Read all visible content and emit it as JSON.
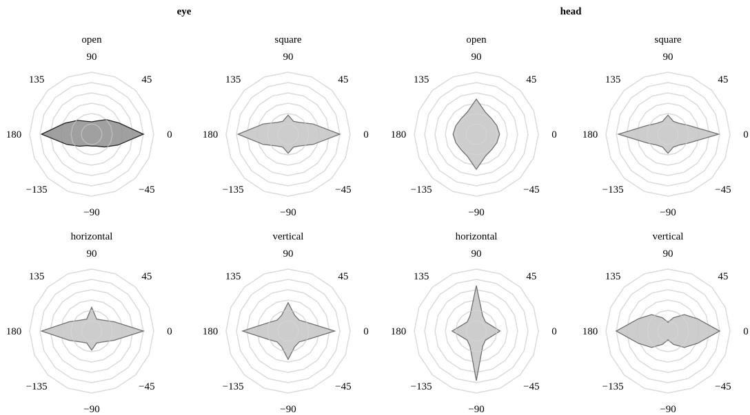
{
  "group_titles": [
    "eye",
    "head"
  ],
  "angle_labels": [
    "0",
    "45",
    "90",
    "135",
    "180",
    "−135",
    "−90",
    "−45"
  ],
  "colors": {
    "grid": "#dcdcdc",
    "fill_default": "#c8c8c8",
    "fill_dark": "#8f8f8f",
    "stroke_default": "#6f6f6f",
    "stroke_dark": "#222222"
  },
  "chart_data": [
    {
      "type": "radar",
      "group": "eye",
      "title": "open",
      "angles": [
        0,
        22.5,
        45,
        67.5,
        90,
        112.5,
        135,
        157.5,
        180,
        -157.5,
        -135,
        -112.5,
        -90,
        -67.5,
        -45,
        -22.5
      ],
      "values": [
        1.0,
        0.57,
        0.4,
        0.28,
        0.24,
        0.27,
        0.38,
        0.56,
        0.97,
        0.52,
        0.33,
        0.24,
        0.23,
        0.25,
        0.35,
        0.55
      ],
      "rmax": 1.2,
      "rings": 6,
      "dark": true
    },
    {
      "type": "radar",
      "group": "eye",
      "title": "square",
      "angles": [
        0,
        22.5,
        45,
        67.5,
        90,
        112.5,
        135,
        157.5,
        180,
        -157.5,
        -135,
        -112.5,
        -90,
        -67.5,
        -45,
        -22.5
      ],
      "values": [
        1.0,
        0.52,
        0.32,
        0.27,
        0.37,
        0.27,
        0.32,
        0.52,
        0.97,
        0.52,
        0.32,
        0.27,
        0.37,
        0.27,
        0.32,
        0.52
      ],
      "rmax": 1.2,
      "rings": 6
    },
    {
      "type": "radar",
      "group": "head",
      "title": "open",
      "angles": [
        0,
        22.5,
        45,
        67.5,
        90,
        112.5,
        135,
        157.5,
        180,
        -157.5,
        -135,
        -112.5,
        -90,
        -67.5,
        -45,
        -22.5
      ],
      "values": [
        0.45,
        0.43,
        0.42,
        0.46,
        0.68,
        0.46,
        0.42,
        0.43,
        0.45,
        0.43,
        0.42,
        0.46,
        0.68,
        0.46,
        0.42,
        0.43
      ],
      "rmax": 1.2,
      "rings": 6
    },
    {
      "type": "radar",
      "group": "head",
      "title": "square",
      "angles": [
        0,
        22.5,
        45,
        67.5,
        90,
        112.5,
        135,
        157.5,
        180,
        -157.5,
        -135,
        -112.5,
        -90,
        -67.5,
        -45,
        -22.5
      ],
      "values": [
        0.98,
        0.44,
        0.3,
        0.27,
        0.37,
        0.27,
        0.3,
        0.44,
        0.96,
        0.44,
        0.3,
        0.27,
        0.37,
        0.27,
        0.3,
        0.44
      ],
      "rmax": 1.2,
      "rings": 6
    },
    {
      "type": "radar",
      "group": "eye",
      "title": "horizontal",
      "angles": [
        0,
        22.5,
        45,
        67.5,
        90,
        112.5,
        135,
        157.5,
        180,
        -157.5,
        -135,
        -112.5,
        -90,
        -67.5,
        -45,
        -22.5
      ],
      "values": [
        1.0,
        0.47,
        0.3,
        0.25,
        0.46,
        0.25,
        0.3,
        0.47,
        0.97,
        0.47,
        0.3,
        0.25,
        0.37,
        0.25,
        0.3,
        0.47
      ],
      "rmax": 1.2,
      "rings": 6
    },
    {
      "type": "radar",
      "group": "eye",
      "title": "vertical",
      "angles": [
        0,
        22.5,
        45,
        67.5,
        90,
        112.5,
        135,
        157.5,
        180,
        -157.5,
        -135,
        -112.5,
        -90,
        -67.5,
        -45,
        -22.5
      ],
      "values": [
        0.9,
        0.42,
        0.3,
        0.33,
        0.55,
        0.33,
        0.3,
        0.42,
        0.88,
        0.42,
        0.3,
        0.33,
        0.55,
        0.33,
        0.3,
        0.42
      ],
      "rmax": 1.2,
      "rings": 6
    },
    {
      "type": "radar",
      "group": "head",
      "title": "horizontal",
      "angles": [
        0,
        22.5,
        45,
        67.5,
        90,
        112.5,
        135,
        157.5,
        180,
        -157.5,
        -135,
        -112.5,
        -90,
        -67.5,
        -45,
        -22.5
      ],
      "values": [
        0.46,
        0.3,
        0.25,
        0.32,
        0.88,
        0.32,
        0.25,
        0.3,
        0.47,
        0.3,
        0.25,
        0.32,
        0.96,
        0.32,
        0.25,
        0.3
      ],
      "rmax": 1.2,
      "rings": 6
    },
    {
      "type": "radar",
      "group": "head",
      "title": "vertical",
      "angles": [
        0,
        22.5,
        45,
        67.5,
        90,
        112.5,
        135,
        157.5,
        180,
        -157.5,
        -135,
        -112.5,
        -90,
        -67.5,
        -45,
        -22.5
      ],
      "values": [
        1.0,
        0.62,
        0.45,
        0.28,
        0.17,
        0.28,
        0.45,
        0.62,
        1.0,
        0.62,
        0.45,
        0.28,
        0.17,
        0.28,
        0.45,
        0.62
      ],
      "rmax": 1.2,
      "rings": 6
    }
  ]
}
